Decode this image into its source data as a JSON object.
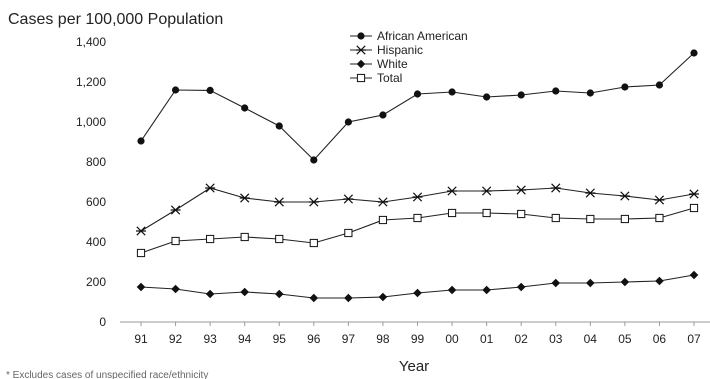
{
  "chart_data": {
    "type": "line",
    "title": "Cases per 100,000 Population",
    "xlabel": "Year",
    "ylabel": "",
    "ylim": [
      0,
      1400
    ],
    "yticks": [
      "0",
      "200",
      "400",
      "600",
      "800",
      "1,000",
      "1,200",
      "1,400"
    ],
    "ytick_values": [
      0,
      200,
      400,
      600,
      800,
      1000,
      1200,
      1400
    ],
    "categories": [
      "91",
      "92",
      "93",
      "94",
      "95",
      "96",
      "97",
      "98",
      "99",
      "00",
      "01",
      "02",
      "03",
      "04",
      "05",
      "06",
      "07"
    ],
    "grid": false,
    "legend_position": "top-center",
    "series": [
      {
        "name": "African American",
        "marker": "dot",
        "values": [
          905,
          1160,
          1158,
          1070,
          980,
          810,
          1000,
          1035,
          1140,
          1150,
          1125,
          1135,
          1155,
          1145,
          1175,
          1185,
          1345
        ]
      },
      {
        "name": "Hispanic",
        "marker": "asterisk",
        "values": [
          455,
          560,
          670,
          620,
          600,
          600,
          615,
          600,
          625,
          655,
          655,
          660,
          670,
          645,
          630,
          610,
          640
        ]
      },
      {
        "name": "White",
        "marker": "diamond",
        "values": [
          175,
          165,
          140,
          150,
          140,
          120,
          120,
          125,
          145,
          160,
          160,
          175,
          195,
          195,
          200,
          205,
          235
        ]
      },
      {
        "name": "Total",
        "marker": "square",
        "values": [
          345,
          405,
          415,
          425,
          415,
          395,
          445,
          510,
          520,
          545,
          545,
          540,
          520,
          515,
          515,
          520,
          570
        ]
      }
    ],
    "footnote": "* Excludes cases of unspecified race/ethnicity"
  }
}
